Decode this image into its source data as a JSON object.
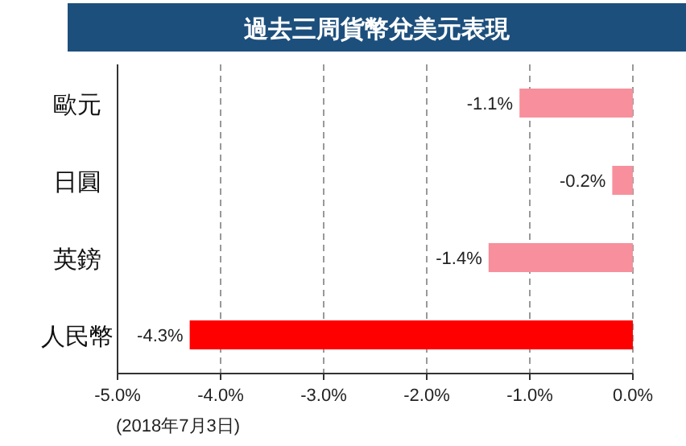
{
  "chart_data": {
    "type": "bar",
    "orientation": "horizontal",
    "title": "過去三周貨幣兌美元表現",
    "categories": [
      "歐元",
      "日圓",
      "英鎊",
      "人民幣"
    ],
    "values": [
      -1.1,
      -0.2,
      -1.4,
      -4.3
    ],
    "value_labels": [
      "-1.1%",
      "-0.2%",
      "-1.4%",
      "-4.3%"
    ],
    "colors": [
      "#f7909c",
      "#f7909c",
      "#f7909c",
      "#ff0000"
    ],
    "xlim": [
      -5,
      0
    ],
    "xticks": [
      {
        "value": -5,
        "label": "-5.0%"
      },
      {
        "value": -4,
        "label": "-4.0%"
      },
      {
        "value": -3,
        "label": "-3.0%"
      },
      {
        "value": -2,
        "label": "-2.0%"
      },
      {
        "value": -1,
        "label": "-1.0%"
      },
      {
        "value": 0,
        "label": "0.0%"
      }
    ],
    "grid": "x",
    "line_style": "dashed",
    "annotations": [
      "(2018年7月3日)"
    ]
  }
}
